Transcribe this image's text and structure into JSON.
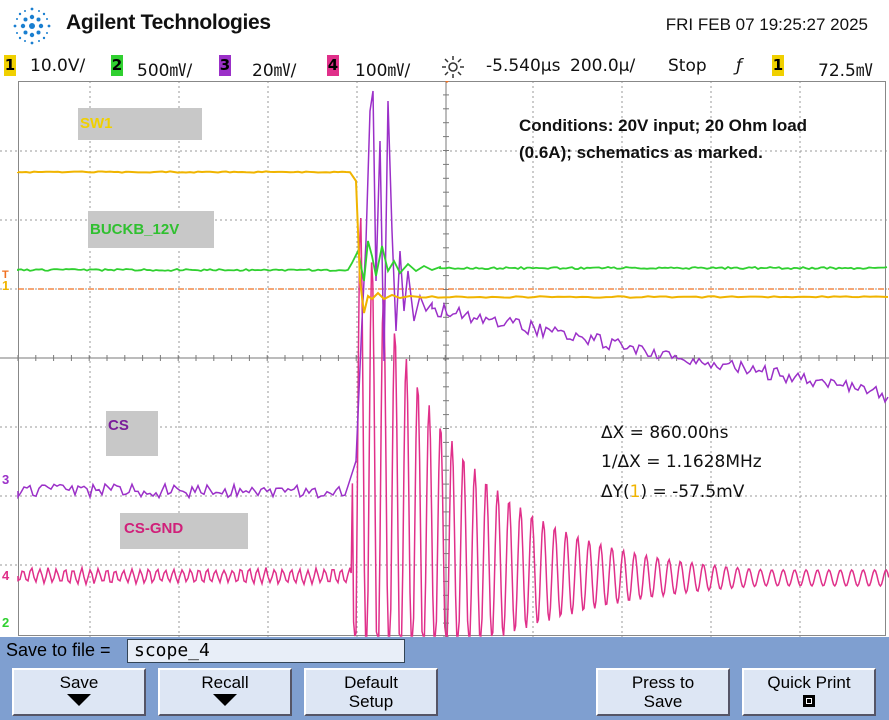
{
  "header": {
    "brand": "Agilent Technologies",
    "datetime": "FRI FEB 07 19:25:27 2025"
  },
  "status": {
    "ch1": {
      "num": "1",
      "scale": "10.0V/",
      "color": "#f0d000"
    },
    "ch2": {
      "num": "2",
      "scale": "500㎷/",
      "color": "#30d030"
    },
    "ch3": {
      "num": "3",
      "scale": "20㎷/",
      "color": "#9b30c8"
    },
    "ch4": {
      "num": "4",
      "scale": "100㎷/",
      "color": "#e0308a"
    },
    "delay": "-5.540µs",
    "timebase": "200.0µ/",
    "run_state": "Stop",
    "trigger_slope": "ƒ",
    "trigger_source": "1",
    "trigger_level": "72.5㎷"
  },
  "labels": {
    "sw1": "SW1",
    "buck": "BUCKB_12V",
    "cs": "CS",
    "csgnd": "CS-GND"
  },
  "note": "Conditions: 20V input; 20 Ohm load (0.6A); schematics as marked.",
  "measurements": {
    "dx": "ΔX = 860.00ns",
    "inv_dx": "1/ΔX = 1.1628MHz",
    "dy_prefix": "ΔY(",
    "dy_src": "1",
    "dy_suffix": ") = -57.5mV"
  },
  "markers": {
    "m1": "1",
    "m2": "2",
    "m3": "3",
    "m4": "4",
    "trig": "T"
  },
  "softkeys": {
    "save_to_file_label": "Save to file =",
    "file_name": "scope_4",
    "save": "Save",
    "recall": "Recall",
    "default_setup_1": "Default",
    "default_setup_2": "Setup",
    "press_to_1": "Press to",
    "press_to_2": "Save",
    "quick_print": "Quick Print"
  },
  "colors": {
    "sw1": "#f0b400",
    "buck": "#30d030",
    "cs": "#9b30c8",
    "csgnd": "#e0308a",
    "grid": "#9a9a9a"
  }
}
